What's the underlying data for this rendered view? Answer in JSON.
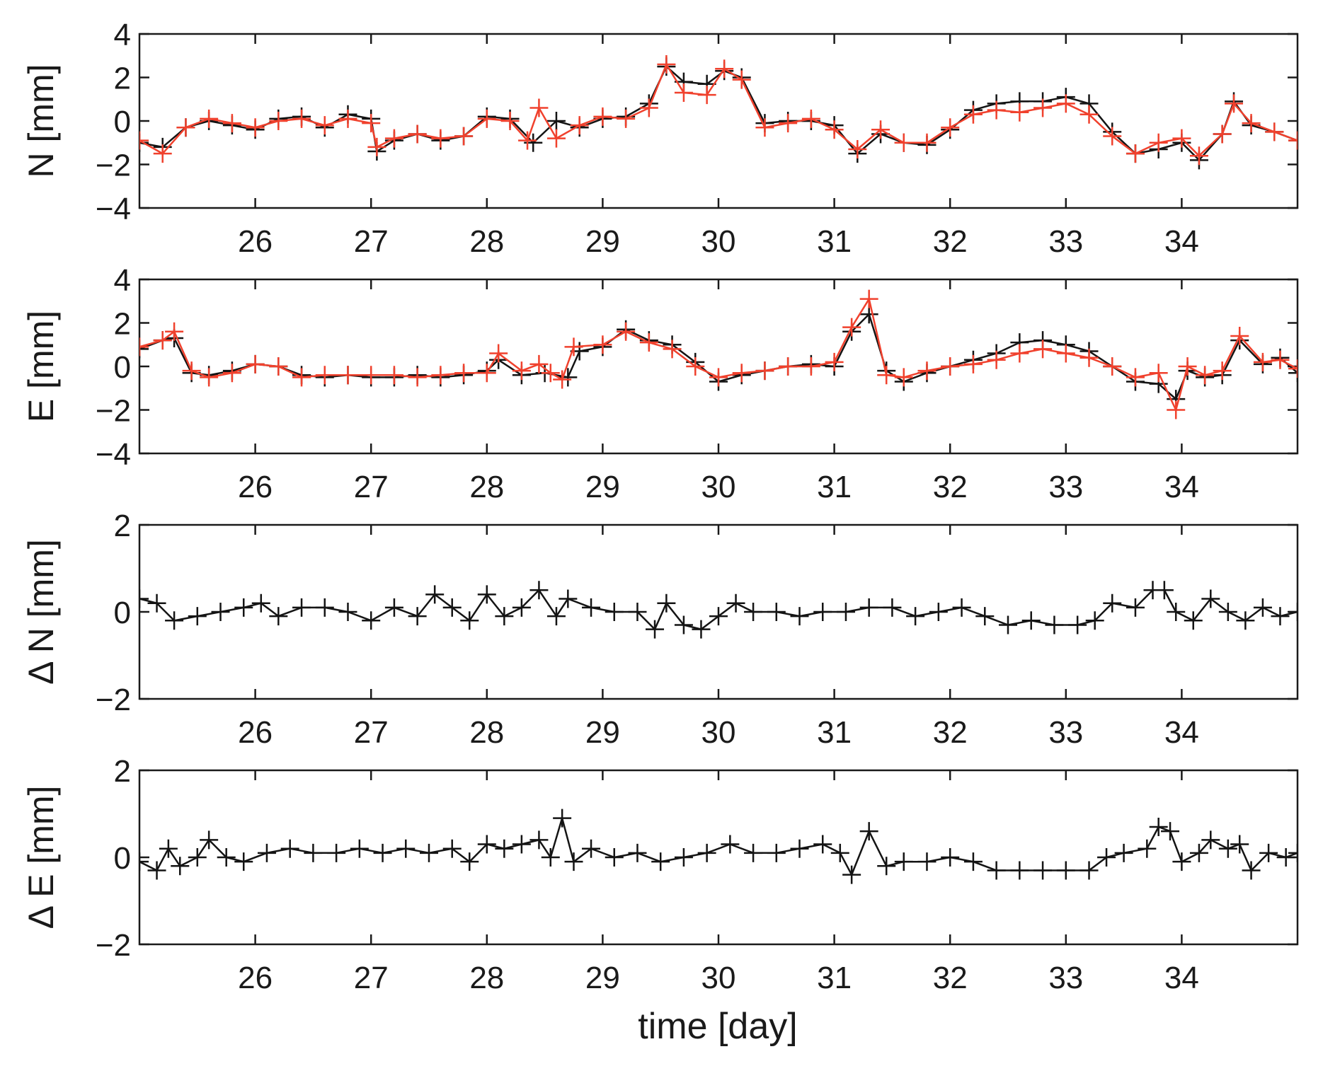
{
  "figure": {
    "xlabel": "time [day]"
  },
  "colors": {
    "axes": "#1a1a1a",
    "series_black": "#141414",
    "series_red": "#f0412d"
  },
  "chart_data": [
    {
      "type": "line",
      "id": "N",
      "ylabel": "N [mm]",
      "xlim": [
        25,
        35
      ],
      "ylim": [
        -4,
        4
      ],
      "xticks": [
        26,
        27,
        28,
        29,
        30,
        31,
        32,
        33,
        34
      ],
      "yticks": [
        -4,
        -2,
        0,
        2,
        4
      ],
      "marker": "+",
      "series": [
        {
          "name": "black",
          "color": "#141414",
          "x": [
            25.0,
            25.2,
            25.4,
            25.6,
            25.8,
            26.0,
            26.2,
            26.4,
            26.6,
            26.8,
            27.0,
            27.05,
            27.2,
            27.4,
            27.6,
            27.8,
            28.0,
            28.2,
            28.4,
            28.6,
            28.8,
            29.0,
            29.2,
            29.4,
            29.55,
            29.7,
            29.9,
            30.05,
            30.2,
            30.4,
            30.6,
            30.8,
            31.0,
            31.2,
            31.4,
            31.6,
            31.8,
            32.0,
            32.2,
            32.4,
            32.6,
            32.8,
            33.0,
            33.2,
            33.4,
            33.6,
            33.8,
            34.0,
            34.15,
            34.35,
            34.45,
            34.6,
            34.8,
            35.0
          ],
          "y": [
            -1.0,
            -1.2,
            -0.3,
            0.0,
            -0.2,
            -0.4,
            0.1,
            0.2,
            -0.3,
            0.3,
            0.1,
            -1.4,
            -0.9,
            -0.6,
            -0.9,
            -0.7,
            0.2,
            0.1,
            -1.0,
            0.0,
            -0.3,
            0.1,
            0.2,
            0.8,
            2.5,
            1.8,
            1.7,
            2.3,
            2.0,
            -0.1,
            0.0,
            0.0,
            -0.2,
            -1.5,
            -0.6,
            -1.0,
            -1.1,
            -0.4,
            0.5,
            0.8,
            0.9,
            0.9,
            1.1,
            0.8,
            -0.5,
            -1.5,
            -1.3,
            -1.0,
            -1.8,
            -0.6,
            0.9,
            -0.2,
            -0.5,
            -0.9
          ]
        },
        {
          "name": "red",
          "color": "#f0412d",
          "x": [
            25.0,
            25.2,
            25.4,
            25.6,
            25.8,
            26.0,
            26.2,
            26.4,
            26.6,
            26.8,
            27.0,
            27.05,
            27.2,
            27.4,
            27.6,
            27.8,
            28.0,
            28.2,
            28.35,
            28.45,
            28.6,
            28.8,
            29.0,
            29.2,
            29.4,
            29.55,
            29.7,
            29.9,
            30.05,
            30.2,
            30.4,
            30.6,
            30.8,
            31.0,
            31.2,
            31.4,
            31.6,
            31.8,
            32.0,
            32.2,
            32.4,
            32.6,
            32.8,
            33.0,
            33.2,
            33.4,
            33.6,
            33.8,
            34.0,
            34.15,
            34.35,
            34.45,
            34.6,
            34.8,
            35.0
          ],
          "y": [
            -0.9,
            -1.5,
            -0.3,
            0.1,
            -0.1,
            -0.3,
            0.0,
            0.1,
            -0.2,
            0.1,
            -0.1,
            -1.2,
            -0.8,
            -0.6,
            -0.8,
            -0.7,
            0.1,
            0.0,
            -0.9,
            0.6,
            -0.8,
            -0.2,
            0.2,
            0.1,
            0.6,
            2.6,
            1.3,
            1.2,
            2.4,
            1.9,
            -0.3,
            -0.1,
            0.1,
            -0.4,
            -1.3,
            -0.4,
            -1.0,
            -1.0,
            -0.3,
            0.3,
            0.5,
            0.4,
            0.6,
            0.8,
            0.3,
            -0.7,
            -1.5,
            -1.0,
            -0.8,
            -1.6,
            -0.6,
            0.8,
            -0.1,
            -0.5,
            -0.9
          ]
        }
      ]
    },
    {
      "type": "line",
      "id": "E",
      "ylabel": "E [mm]",
      "xlim": [
        25,
        35
      ],
      "ylim": [
        -4,
        4
      ],
      "xticks": [
        26,
        27,
        28,
        29,
        30,
        31,
        32,
        33,
        34
      ],
      "yticks": [
        -4,
        -2,
        0,
        2,
        4
      ],
      "marker": "+",
      "series": [
        {
          "name": "black",
          "color": "#141414",
          "x": [
            25.0,
            25.2,
            25.3,
            25.45,
            25.6,
            25.8,
            26.0,
            26.2,
            26.4,
            26.6,
            26.8,
            27.0,
            27.2,
            27.4,
            27.6,
            27.8,
            28.0,
            28.1,
            28.3,
            28.5,
            28.7,
            28.8,
            29.0,
            29.2,
            29.4,
            29.6,
            29.8,
            30.0,
            30.2,
            30.4,
            30.6,
            30.8,
            31.0,
            31.15,
            31.3,
            31.45,
            31.6,
            31.8,
            32.0,
            32.2,
            32.4,
            32.6,
            32.8,
            33.0,
            33.2,
            33.4,
            33.6,
            33.8,
            33.95,
            34.05,
            34.2,
            34.35,
            34.5,
            34.7,
            34.85,
            35.0
          ],
          "y": [
            0.8,
            1.2,
            1.3,
            -0.3,
            -0.4,
            -0.2,
            0.1,
            0.0,
            -0.4,
            -0.5,
            -0.4,
            -0.5,
            -0.5,
            -0.4,
            -0.5,
            -0.4,
            -0.2,
            0.3,
            -0.4,
            -0.3,
            -0.5,
            0.7,
            0.9,
            1.7,
            1.2,
            1.0,
            0.2,
            -0.7,
            -0.4,
            -0.2,
            0.0,
            0.1,
            0.0,
            1.6,
            2.4,
            -0.2,
            -0.7,
            -0.3,
            0.0,
            0.3,
            0.6,
            1.1,
            1.2,
            1.0,
            0.7,
            0.0,
            -0.7,
            -0.8,
            -1.5,
            -0.2,
            -0.5,
            -0.4,
            1.2,
            0.1,
            0.4,
            -0.3
          ]
        },
        {
          "name": "red",
          "color": "#f0412d",
          "x": [
            25.0,
            25.2,
            25.3,
            25.45,
            25.6,
            25.8,
            26.0,
            26.2,
            26.4,
            26.6,
            26.8,
            27.0,
            27.2,
            27.4,
            27.6,
            27.8,
            28.0,
            28.1,
            28.3,
            28.45,
            28.55,
            28.65,
            28.75,
            29.0,
            29.2,
            29.4,
            29.6,
            29.8,
            30.0,
            30.2,
            30.4,
            30.6,
            30.8,
            31.0,
            31.15,
            31.3,
            31.45,
            31.6,
            31.8,
            32.0,
            32.2,
            32.4,
            32.6,
            32.8,
            33.0,
            33.2,
            33.4,
            33.6,
            33.8,
            33.95,
            34.05,
            34.2,
            34.35,
            34.5,
            34.7,
            34.85,
            35.0
          ],
          "y": [
            0.9,
            1.2,
            1.6,
            -0.2,
            -0.5,
            -0.3,
            0.1,
            0.0,
            -0.5,
            -0.4,
            -0.4,
            -0.4,
            -0.4,
            -0.5,
            -0.4,
            -0.3,
            -0.3,
            0.6,
            -0.2,
            0.1,
            -0.3,
            -0.6,
            0.9,
            1.0,
            1.6,
            1.1,
            0.8,
            0.0,
            -0.5,
            -0.3,
            -0.2,
            0.0,
            0.0,
            0.2,
            1.8,
            3.1,
            -0.4,
            -0.5,
            -0.2,
            0.0,
            0.1,
            0.3,
            0.6,
            0.8,
            0.6,
            0.4,
            0.0,
            -0.5,
            -0.3,
            -2.0,
            0.0,
            -0.4,
            -0.2,
            1.4,
            0.2,
            0.3,
            -0.1
          ]
        }
      ]
    },
    {
      "type": "line",
      "id": "dN",
      "ylabel": "Δ N [mm]",
      "xlim": [
        25,
        35
      ],
      "ylim": [
        -2,
        2
      ],
      "xticks": [
        26,
        27,
        28,
        29,
        30,
        31,
        32,
        33,
        34
      ],
      "yticks": [
        -2,
        0,
        2
      ],
      "marker": "+",
      "series": [
        {
          "name": "difference",
          "color": "#141414",
          "x": [
            25.0,
            25.15,
            25.3,
            25.5,
            25.7,
            25.9,
            26.05,
            26.2,
            26.4,
            26.6,
            26.8,
            27.0,
            27.2,
            27.4,
            27.55,
            27.7,
            27.85,
            28.0,
            28.15,
            28.3,
            28.45,
            28.6,
            28.7,
            28.9,
            29.1,
            29.3,
            29.45,
            29.55,
            29.7,
            29.85,
            30.0,
            30.15,
            30.3,
            30.5,
            30.7,
            30.9,
            31.1,
            31.3,
            31.5,
            31.7,
            31.9,
            32.1,
            32.3,
            32.5,
            32.7,
            32.9,
            33.1,
            33.25,
            33.4,
            33.6,
            33.75,
            33.85,
            33.95,
            34.1,
            34.25,
            34.4,
            34.55,
            34.7,
            34.85,
            35.0
          ],
          "y": [
            0.3,
            0.2,
            -0.2,
            -0.1,
            0.0,
            0.1,
            0.2,
            -0.1,
            0.1,
            0.1,
            0.0,
            -0.2,
            0.1,
            -0.1,
            0.4,
            0.1,
            -0.2,
            0.4,
            -0.1,
            0.1,
            0.5,
            -0.1,
            0.3,
            0.1,
            0.0,
            0.0,
            -0.4,
            0.2,
            -0.3,
            -0.4,
            -0.1,
            0.2,
            0.0,
            0.0,
            -0.1,
            0.0,
            0.0,
            0.1,
            0.1,
            -0.1,
            0.0,
            0.1,
            -0.1,
            -0.3,
            -0.2,
            -0.3,
            -0.3,
            -0.2,
            0.2,
            0.1,
            0.5,
            0.5,
            0.0,
            -0.2,
            0.3,
            0.0,
            -0.2,
            0.1,
            -0.1,
            0.0
          ]
        }
      ]
    },
    {
      "type": "line",
      "id": "dE",
      "ylabel": "Δ E [mm]",
      "xlim": [
        25,
        35
      ],
      "ylim": [
        -2,
        2
      ],
      "xticks": [
        26,
        27,
        28,
        29,
        30,
        31,
        32,
        33,
        34
      ],
      "yticks": [
        -2,
        0,
        2
      ],
      "marker": "+",
      "series": [
        {
          "name": "difference",
          "color": "#141414",
          "x": [
            25.0,
            25.15,
            25.25,
            25.35,
            25.5,
            25.6,
            25.75,
            25.9,
            26.1,
            26.3,
            26.5,
            26.7,
            26.9,
            27.1,
            27.3,
            27.5,
            27.7,
            27.85,
            28.0,
            28.15,
            28.3,
            28.45,
            28.55,
            28.65,
            28.75,
            28.9,
            29.1,
            29.3,
            29.5,
            29.7,
            29.9,
            30.1,
            30.3,
            30.5,
            30.7,
            30.9,
            31.05,
            31.15,
            31.3,
            31.45,
            31.6,
            31.8,
            32.0,
            32.2,
            32.4,
            32.6,
            32.8,
            33.0,
            33.2,
            33.35,
            33.5,
            33.7,
            33.8,
            33.9,
            34.0,
            34.15,
            34.25,
            34.4,
            34.5,
            34.6,
            34.75,
            34.9,
            35.0
          ],
          "y": [
            -0.1,
            -0.3,
            0.2,
            -0.2,
            0.0,
            0.4,
            0.0,
            -0.1,
            0.1,
            0.2,
            0.1,
            0.1,
            0.2,
            0.1,
            0.2,
            0.1,
            0.2,
            -0.1,
            0.3,
            0.2,
            0.3,
            0.4,
            0.0,
            0.9,
            -0.1,
            0.2,
            0.0,
            0.1,
            -0.1,
            0.0,
            0.1,
            0.3,
            0.1,
            0.1,
            0.2,
            0.3,
            0.1,
            -0.4,
            0.6,
            -0.2,
            -0.1,
            -0.1,
            0.0,
            -0.1,
            -0.3,
            -0.3,
            -0.3,
            -0.3,
            -0.3,
            0.0,
            0.1,
            0.2,
            0.7,
            0.6,
            -0.1,
            0.1,
            0.4,
            0.2,
            0.3,
            -0.3,
            0.1,
            0.0,
            0.1
          ]
        }
      ]
    }
  ]
}
